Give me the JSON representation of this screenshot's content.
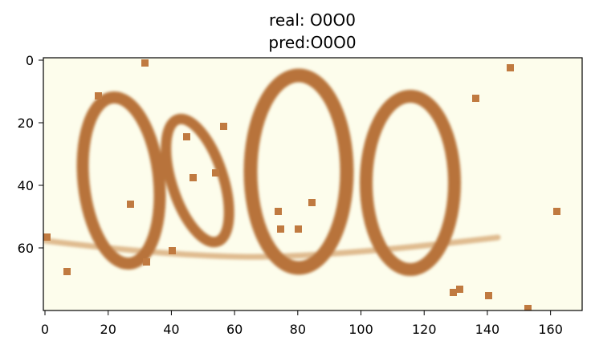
{
  "figure": {
    "title_line1": "real: O0O0",
    "title_line2": "pred:O0O0"
  },
  "image": {
    "background_color": "#fdfdec",
    "ink_color": "#b8733a",
    "width_units": 170,
    "height_units": 80
  },
  "axes": {
    "x_ticks": [
      {
        "value": 0,
        "label": "0"
      },
      {
        "value": 20,
        "label": "20"
      },
      {
        "value": 40,
        "label": "40"
      },
      {
        "value": 60,
        "label": "60"
      },
      {
        "value": 80,
        "label": "80"
      },
      {
        "value": 100,
        "label": "100"
      },
      {
        "value": 120,
        "label": "120"
      },
      {
        "value": 140,
        "label": "140"
      },
      {
        "value": 160,
        "label": "160"
      }
    ],
    "y_ticks": [
      {
        "value": 0,
        "label": "0"
      },
      {
        "value": 20,
        "label": "20"
      },
      {
        "value": 40,
        "label": "40"
      },
      {
        "value": 60,
        "label": "60"
      }
    ]
  }
}
